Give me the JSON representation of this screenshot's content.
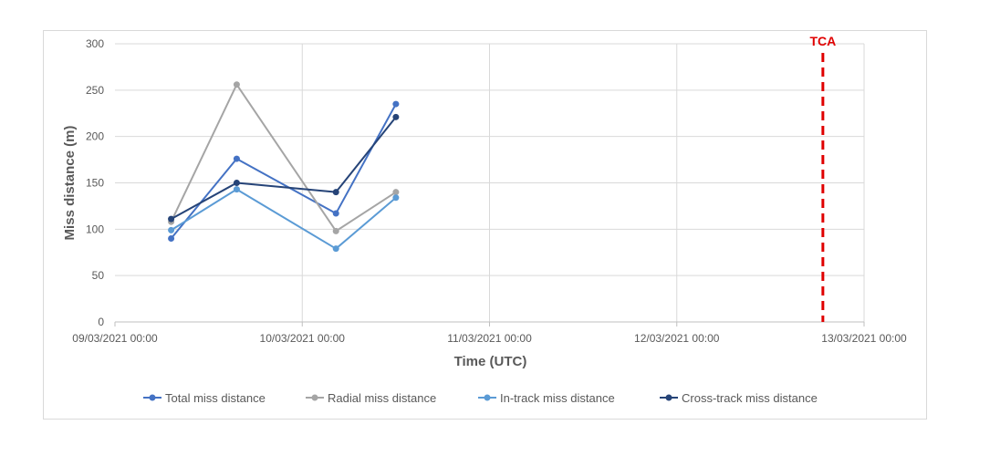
{
  "chart_data": {
    "type": "line",
    "xlabel": "Time (UTC)",
    "ylabel": "Miss distance (m)",
    "ylim": [
      0,
      300
    ],
    "yticks": [
      0,
      50,
      100,
      150,
      200,
      250,
      300
    ],
    "xlim_days": [
      9,
      13
    ],
    "xticks": [
      {
        "day": 9,
        "label": "09/03/2021 00:00"
      },
      {
        "day": 10,
        "label": "10/03/2021 00:00"
      },
      {
        "day": 11,
        "label": "11/03/2021 00:00"
      },
      {
        "day": 12,
        "label": "12/03/2021 00:00"
      },
      {
        "day": 13,
        "label": "13/03/2021 00:00"
      }
    ],
    "grid": true,
    "legend_position": "bottom",
    "x": [
      9.3,
      9.65,
      10.18,
      10.5
    ],
    "series": [
      {
        "name": "Total miss distance",
        "color": "#4472C4",
        "values": [
          90,
          176,
          117,
          235
        ]
      },
      {
        "name": "Radial miss distance",
        "color": "#A5A5A5",
        "values": [
          108,
          256,
          98,
          140
        ]
      },
      {
        "name": "In-track miss distance",
        "color": "#5B9BD5",
        "values": [
          99,
          143,
          79,
          134
        ]
      },
      {
        "name": "Cross-track miss distance",
        "color": "#264478",
        "values": [
          111,
          150,
          140,
          221
        ]
      }
    ],
    "annotations": [
      {
        "label": "TCA",
        "x_day": 12.78,
        "color": "#E00000",
        "style": "dashed vertical line"
      }
    ]
  }
}
